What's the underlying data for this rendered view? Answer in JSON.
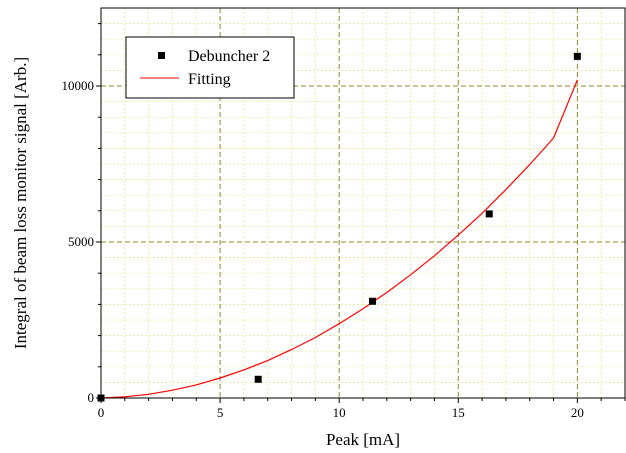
{
  "chart_data": {
    "type": "scatter",
    "title": "",
    "xlabel": "Peak [mA]",
    "ylabel": "Integral of beam loss monitor signal [Arb.]",
    "xlim": [
      0,
      22
    ],
    "ylim": [
      0,
      12500
    ],
    "xticks": [
      0,
      5,
      10,
      15,
      20
    ],
    "xtick_labels": [
      "0",
      "5",
      "10",
      "15",
      "20"
    ],
    "yticks": [
      0,
      5000,
      10000
    ],
    "ytick_labels": [
      "0",
      "5000",
      "10000"
    ],
    "grid": true,
    "legend_position": "top-left",
    "series": [
      {
        "name": "Debuncher 2",
        "kind": "scatter",
        "marker": "square",
        "color": "#000000",
        "x": [
          0,
          6.6,
          11.4,
          16.3,
          20
        ],
        "y": [
          0,
          600,
          3100,
          5900,
          10950
        ]
      },
      {
        "name": "Fitting",
        "kind": "line",
        "color": "#ff0000",
        "x": [
          0,
          1,
          2,
          3,
          4,
          5,
          6,
          7,
          8,
          9,
          10,
          11,
          12,
          13,
          14,
          15,
          16,
          17,
          18,
          19,
          20
        ],
        "y": [
          0,
          40,
          120,
          250,
          420,
          640,
          900,
          1200,
          1550,
          1940,
          2380,
          2860,
          3380,
          3950,
          4560,
          5220,
          5920,
          6680,
          7480,
          8330,
          10200
        ]
      }
    ]
  }
}
